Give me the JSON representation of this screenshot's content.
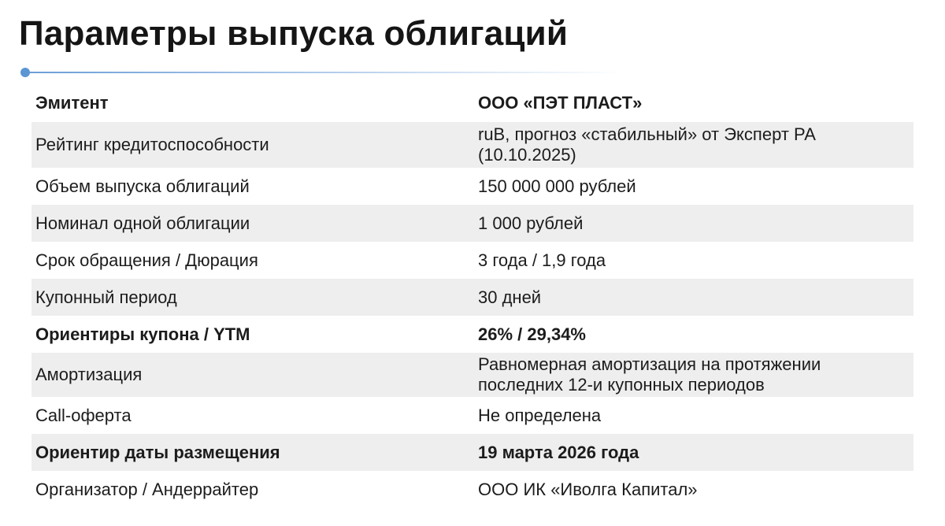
{
  "page": {
    "title": "Параметры выпуска облигаций"
  },
  "accent_color": "#5b95d4",
  "table": {
    "rows": [
      {
        "label": "Эмитент",
        "value": "ООО «ПЭТ ПЛАСТ»",
        "bold": true,
        "shaded": false
      },
      {
        "label": "Рейтинг кредитоспособности",
        "value": "ruB, прогноз «стабильный» от Эксперт РА (10.10.2025)",
        "bold": false,
        "shaded": true
      },
      {
        "label": "Объем выпуска облигаций",
        "value": "150 000 000 рублей",
        "bold": false,
        "shaded": false
      },
      {
        "label": "Номинал одной облигации",
        "value": "1 000 рублей",
        "bold": false,
        "shaded": true
      },
      {
        "label": "Срок обращения / Дюрация",
        "value": "3  года / 1,9 года",
        "bold": false,
        "shaded": false
      },
      {
        "label": "Купонный период",
        "value": "30 дней",
        "bold": false,
        "shaded": true
      },
      {
        "label": "Ориентиры купона / YTM",
        "value": "26% / 29,34%",
        "bold": true,
        "shaded": false
      },
      {
        "label": "Амортизация",
        "value": "Равномерная амортизация на протяжении последних 12-и купонных периодов",
        "bold": false,
        "shaded": true
      },
      {
        "label": "Call-оферта",
        "value": "Не определена",
        "bold": false,
        "shaded": false
      },
      {
        "label": "Ориентир даты размещения",
        "value": "19 марта 2026 года",
        "bold": true,
        "shaded": true
      },
      {
        "label": "Организатор / Андеррайтер",
        "value": "ООО ИК «Иволга Капитал»",
        "bold": false,
        "shaded": false
      }
    ]
  }
}
